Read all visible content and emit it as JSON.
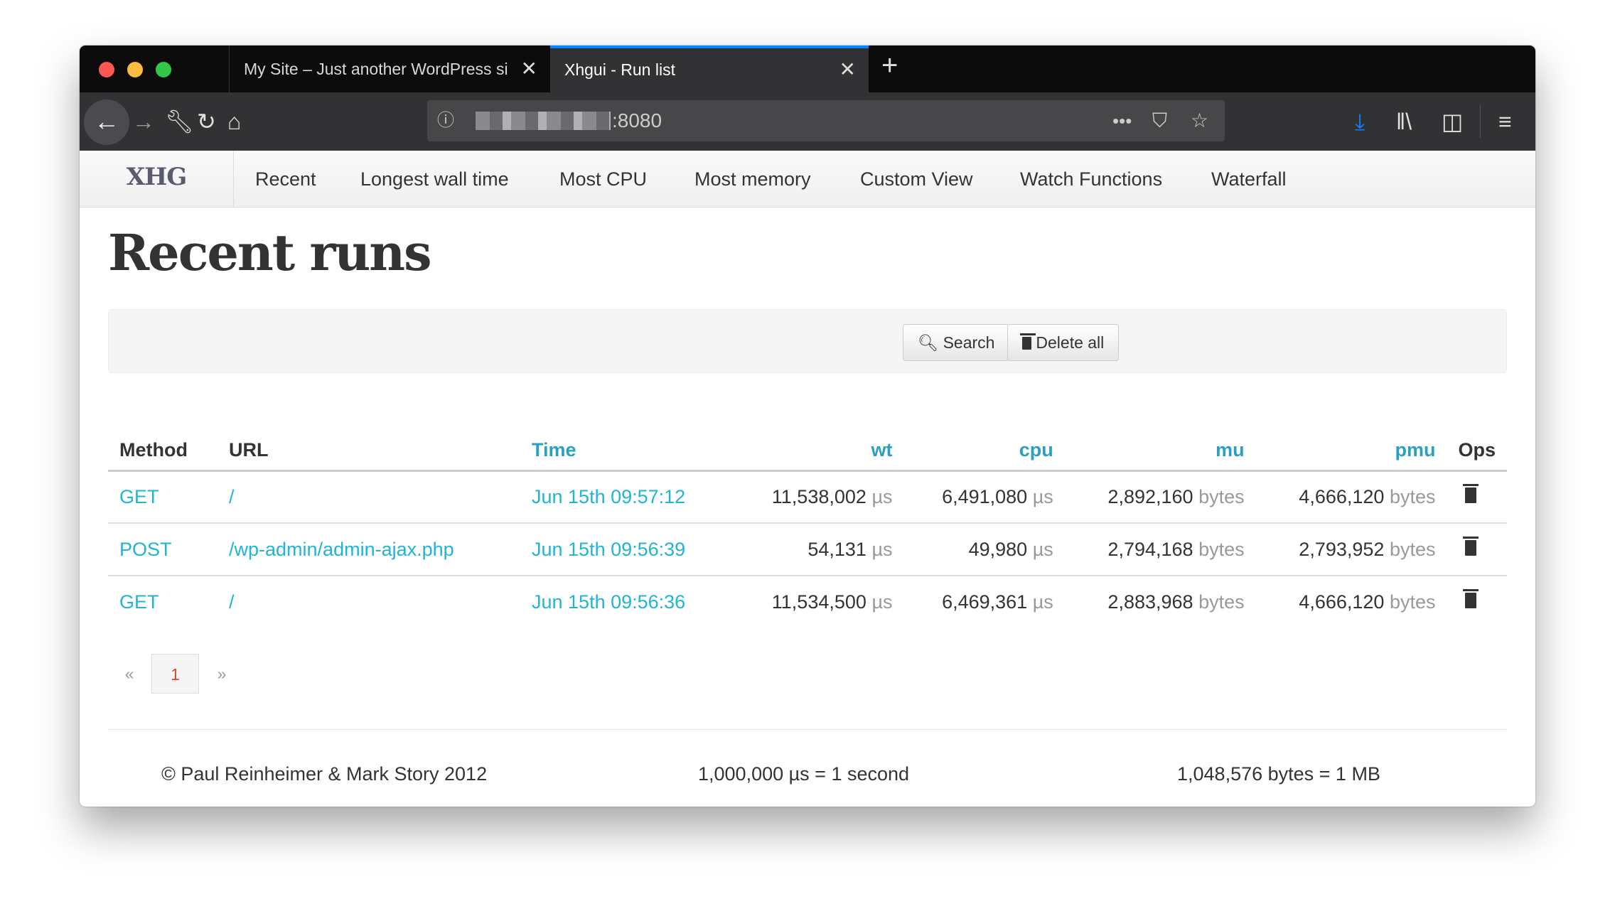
{
  "browser": {
    "tabs": [
      {
        "title": "My Site – Just another WordPress si",
        "active": false
      },
      {
        "title": "Xhgui - Run list",
        "active": true
      }
    ],
    "url": ":8080",
    "accent": "#0a84ff"
  },
  "nav": {
    "brand": "XHG",
    "items": [
      "Recent",
      "Longest wall time",
      "Most CPU",
      "Most memory",
      "Custom View",
      "Watch Functions",
      "Waterfall"
    ]
  },
  "page": {
    "title": "Recent runs"
  },
  "toolbar": {
    "search": "Search",
    "delete_all": "Delete all"
  },
  "table": {
    "headers": {
      "method": "Method",
      "url": "URL",
      "time": "Time",
      "wt": "wt",
      "cpu": "cpu",
      "mu": "mu",
      "pmu": "pmu",
      "ops": "Ops"
    },
    "units": {
      "us": "µs",
      "bytes": "bytes"
    },
    "rows": [
      {
        "method": "GET",
        "url": "/",
        "time": "Jun 15th 09:57:12",
        "wt": "11,538,002",
        "cpu": "6,491,080",
        "mu": "2,892,160",
        "pmu": "4,666,120"
      },
      {
        "method": "POST",
        "url": "/wp-admin/admin-ajax.php",
        "time": "Jun 15th 09:56:39",
        "wt": "54,131",
        "cpu": "49,980",
        "mu": "2,794,168",
        "pmu": "2,793,952"
      },
      {
        "method": "GET",
        "url": "/",
        "time": "Jun 15th 09:56:36",
        "wt": "11,534,500",
        "cpu": "6,469,361",
        "mu": "2,883,968",
        "pmu": "4,666,120"
      }
    ]
  },
  "pagination": {
    "prev": "«",
    "current": "1",
    "next": "»"
  },
  "footer": {
    "copyright": "© Paul Reinheimer & Mark Story 2012",
    "time_note": "1,000,000 µs = 1 second",
    "mem_note": "1,048,576 bytes = 1 MB"
  },
  "colors": {
    "link": "#1fb5d4",
    "header_link": "#2aa0c0",
    "current_page": "#e8432b"
  }
}
